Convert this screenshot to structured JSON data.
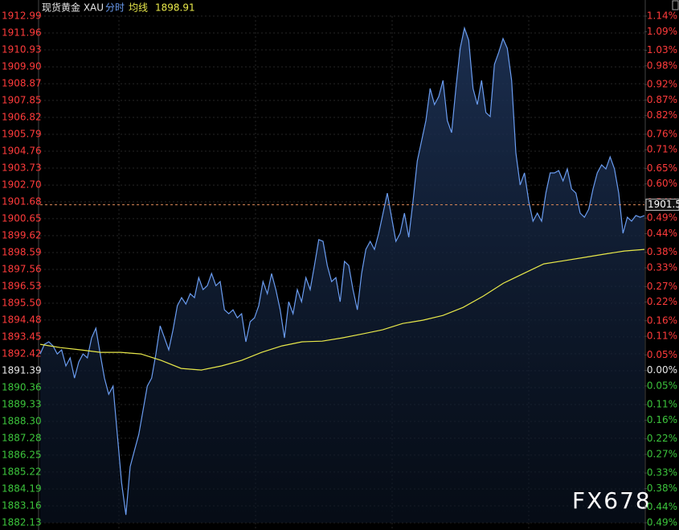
{
  "chart_data": {
    "type": "line",
    "title": "现货黄金 XAU",
    "latest_avg": 1898.91,
    "last_price": 1901.5,
    "watermark": "FX678",
    "grid": true,
    "up_color": "#ff3b3b",
    "down_color": "#3cc43c",
    "flat_color": "#e6e6e6",
    "ylim": [
      1882.13,
      1912.99
    ],
    "y2lim": [
      -0.49,
      1.14
    ],
    "yticks": [
      1912.99,
      1911.96,
      1910.93,
      {
        "value": 1909.9,
        "label": "1909.90"
      },
      1908.87,
      1907.85,
      1906.82,
      1905.79,
      1904.76,
      1903.73,
      {
        "value": 1902.7,
        "label": "1902.70"
      },
      1901.68,
      1900.65,
      1899.62,
      1898.59,
      1897.56,
      1896.53,
      {
        "value": 1895.5,
        "label": "1895.50"
      },
      1894.48,
      1893.45,
      1892.42,
      1891.39,
      1890.36,
      1889.33,
      {
        "value": 1888.3,
        "label": "1888.30"
      },
      1887.28,
      1886.25,
      1885.22,
      1884.19,
      1883.16,
      1882.13
    ],
    "y2ticks": [
      {
        "value": 1.14,
        "label": "1.14%"
      },
      {
        "value": 1.09,
        "label": "1.09%"
      },
      {
        "value": 1.03,
        "label": "1.03%"
      },
      {
        "value": 0.98,
        "label": "0.98%"
      },
      {
        "value": 0.92,
        "label": "0.92%"
      },
      {
        "value": 0.87,
        "label": "0.87%"
      },
      {
        "value": 0.82,
        "label": "0.82%"
      },
      {
        "value": 0.76,
        "label": "0.76%"
      },
      {
        "value": 0.71,
        "label": "0.71%"
      },
      {
        "value": 0.65,
        "label": "0.65%"
      },
      {
        "value": 0.6,
        "label": "0.60%"
      },
      {
        "value": 0.54,
        "label": "0.54%"
      },
      {
        "value": 0.49,
        "label": "0.49%"
      },
      {
        "value": 0.44,
        "label": "0.44%"
      },
      {
        "value": 0.38,
        "label": "0.38%"
      },
      {
        "value": 0.33,
        "label": "0.33%"
      },
      {
        "value": 0.27,
        "label": "0.27%"
      },
      {
        "value": 0.22,
        "label": "0.22%"
      },
      {
        "value": 0.16,
        "label": "0.16%"
      },
      {
        "value": 0.11,
        "label": "0.11%"
      },
      {
        "value": 0.05,
        "label": "0.05%"
      },
      {
        "value": 0,
        "label": "0.00%"
      },
      {
        "value": -0.05,
        "label": "0.05%"
      },
      {
        "value": -0.11,
        "label": "0.11%"
      },
      {
        "value": -0.16,
        "label": "0.16%"
      },
      {
        "value": -0.22,
        "label": "0.22%"
      },
      {
        "value": -0.27,
        "label": "0.27%"
      },
      {
        "value": -0.33,
        "label": "0.33%"
      },
      {
        "value": -0.38,
        "label": "0.38%"
      },
      {
        "value": -0.44,
        "label": "0.44%"
      },
      {
        "value": -0.49,
        "label": "0.49%"
      }
    ],
    "series": [
      {
        "name": "分时",
        "color": "#6a9cf0",
        "values": [
          1892.41,
          1893.0,
          1893.15,
          1892.9,
          1892.41,
          1892.66,
          1891.68,
          1892.17,
          1890.94,
          1891.92,
          1892.41,
          1892.17,
          1893.39,
          1893.98,
          1892.41,
          1890.94,
          1889.96,
          1890.45,
          1887.51,
          1884.57,
          1882.61,
          1885.55,
          1886.53,
          1887.51,
          1888.98,
          1890.45,
          1890.94,
          1892.41,
          1894.12,
          1893.39,
          1892.66,
          1893.88,
          1895.35,
          1895.84,
          1895.45,
          1896.08,
          1895.84,
          1897.06,
          1896.33,
          1896.57,
          1897.31,
          1896.57,
          1896.82,
          1895.1,
          1894.86,
          1895.1,
          1894.61,
          1894.86,
          1893.15,
          1894.37,
          1894.61,
          1895.35,
          1896.82,
          1896.08,
          1897.31,
          1896.33,
          1895.1,
          1893.39,
          1895.59,
          1894.86,
          1896.33,
          1895.59,
          1897.06,
          1896.33,
          1897.8,
          1899.37,
          1899.27,
          1897.8,
          1896.82,
          1897.06,
          1895.59,
          1898.05,
          1897.8,
          1896.33,
          1895.1,
          1897.31,
          1898.78,
          1899.27,
          1898.78,
          1899.76,
          1900.99,
          1902.21,
          1900.74,
          1899.27,
          1899.76,
          1900.99,
          1899.52,
          1901.72,
          1904.17,
          1905.4,
          1906.62,
          1908.58,
          1907.6,
          1908.09,
          1909.07,
          1906.62,
          1905.89,
          1908.58,
          1911.03,
          1912.26,
          1911.52,
          1908.58,
          1907.6,
          1909.07,
          1907.11,
          1906.87,
          1910.05,
          1910.79,
          1911.62,
          1911.03,
          1909.07,
          1904.66,
          1902.7,
          1903.44,
          1901.72,
          1900.5,
          1900.99,
          1900.5,
          1902.21,
          1903.44,
          1903.44,
          1903.58,
          1902.95,
          1903.68,
          1902.46,
          1902.21,
          1900.99,
          1900.74,
          1901.23,
          1902.46,
          1903.44,
          1903.93,
          1903.68,
          1904.42,
          1903.68,
          1902.21,
          1899.76,
          1900.74,
          1900.5,
          1900.84,
          1900.74,
          1900.84
        ]
      },
      {
        "name": "均线",
        "color": "#e8e84a",
        "values": [
          1893.0,
          1892.8,
          1892.66,
          1892.51,
          1892.51,
          1892.41,
          1892.02,
          1891.53,
          1891.43,
          1891.68,
          1892.02,
          1892.51,
          1892.9,
          1893.15,
          1893.19,
          1893.39,
          1893.63,
          1893.88,
          1894.27,
          1894.47,
          1894.76,
          1895.25,
          1895.94,
          1896.72,
          1897.31,
          1897.9,
          1898.09,
          1898.29,
          1898.49,
          1898.68,
          1898.78
        ]
      }
    ]
  }
}
